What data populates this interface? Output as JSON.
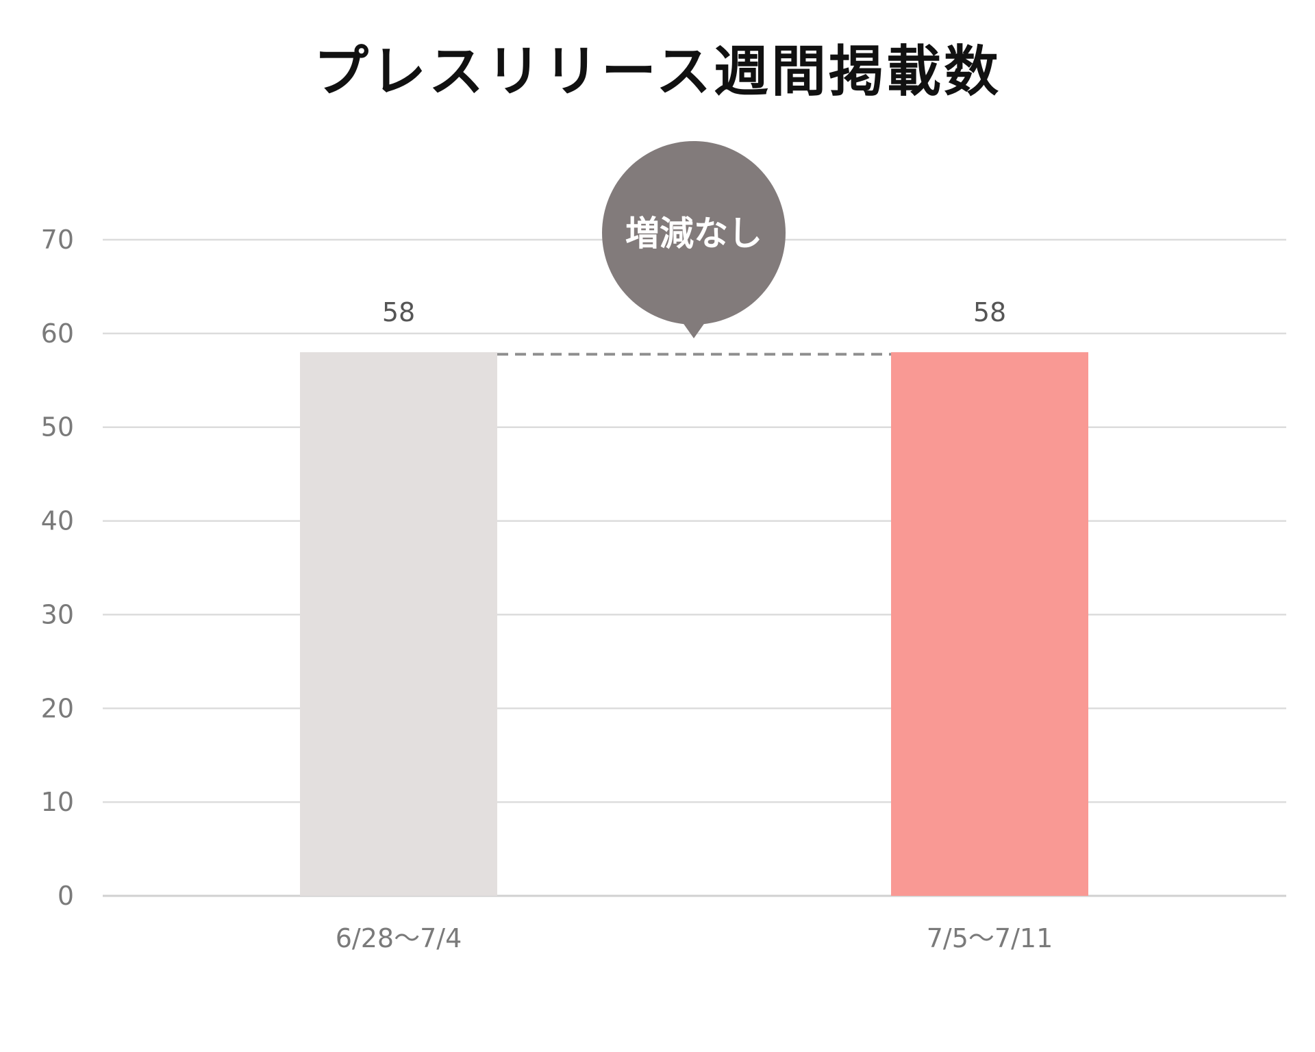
{
  "chart_data": {
    "type": "bar",
    "title": "プレスリリース週間掲載数",
    "categories": [
      "6/28〜7/4",
      "7/5〜7/11"
    ],
    "values": [
      58,
      58
    ],
    "data_labels": [
      "58",
      "58"
    ],
    "ylim": [
      0,
      70
    ],
    "yticks": [
      0,
      10,
      20,
      30,
      40,
      50,
      60,
      70
    ],
    "xlabel": "",
    "ylabel": "",
    "grid": true,
    "legend": "none",
    "bar_colors": [
      "#e3dfde",
      "#f99994"
    ],
    "callout": {
      "text": "増減なし",
      "color": "#827b7b"
    },
    "connector_color": "#8f8f8f"
  }
}
